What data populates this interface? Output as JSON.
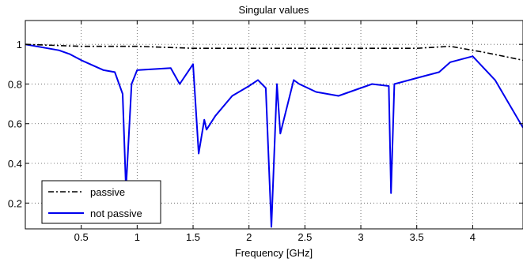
{
  "chart_data": {
    "type": "line",
    "title": "Singular values",
    "xlabel": "Frequency [GHz]",
    "ylabel": "",
    "xlim": [
      0.0,
      4.45
    ],
    "ylim": [
      0.07,
      1.12
    ],
    "xticks": [
      0.5,
      1,
      1.5,
      2,
      2.5,
      3,
      3.5,
      4
    ],
    "xtick_labels": [
      "0.5",
      "1",
      "1.5",
      "2",
      "2.5",
      "3",
      "3.5",
      "4"
    ],
    "yticks": [
      0.2,
      0.4,
      0.6,
      0.8,
      1
    ],
    "ytick_labels": [
      "0.2",
      "0.4",
      "0.6",
      "0.8",
      "1"
    ],
    "grid": true,
    "legend_position": "bottom-left",
    "colors": {
      "passive": "#000000",
      "not_passive": "#0000ee"
    },
    "series": [
      {
        "name": "passive",
        "style": "dash-dot",
        "x": [
          0,
          0.5,
          1,
          1.5,
          2,
          2.5,
          3,
          3.5,
          3.8,
          4.1,
          4.45
        ],
        "values": [
          1.0,
          0.99,
          0.99,
          0.98,
          0.98,
          0.98,
          0.98,
          0.98,
          0.99,
          0.96,
          0.92
        ]
      },
      {
        "name": "not passive",
        "style": "solid",
        "x": [
          0,
          0.3,
          0.4,
          0.5,
          0.7,
          0.8,
          0.87,
          0.9,
          0.95,
          1.0,
          1.3,
          1.38,
          1.5,
          1.55,
          1.6,
          1.62,
          1.7,
          1.85,
          2.0,
          2.08,
          2.15,
          2.2,
          2.25,
          2.28,
          2.4,
          2.45,
          2.6,
          2.8,
          2.9,
          3.1,
          3.25,
          3.27,
          3.3,
          3.5,
          3.7,
          3.8,
          4.0,
          4.2,
          4.45
        ],
        "values": [
          1.0,
          0.97,
          0.95,
          0.92,
          0.87,
          0.86,
          0.75,
          0.27,
          0.8,
          0.87,
          0.88,
          0.8,
          0.9,
          0.45,
          0.62,
          0.57,
          0.64,
          0.74,
          0.79,
          0.82,
          0.78,
          0.08,
          0.8,
          0.55,
          0.82,
          0.8,
          0.76,
          0.74,
          0.76,
          0.8,
          0.79,
          0.25,
          0.8,
          0.83,
          0.86,
          0.91,
          0.94,
          0.82,
          0.58
        ]
      }
    ]
  }
}
